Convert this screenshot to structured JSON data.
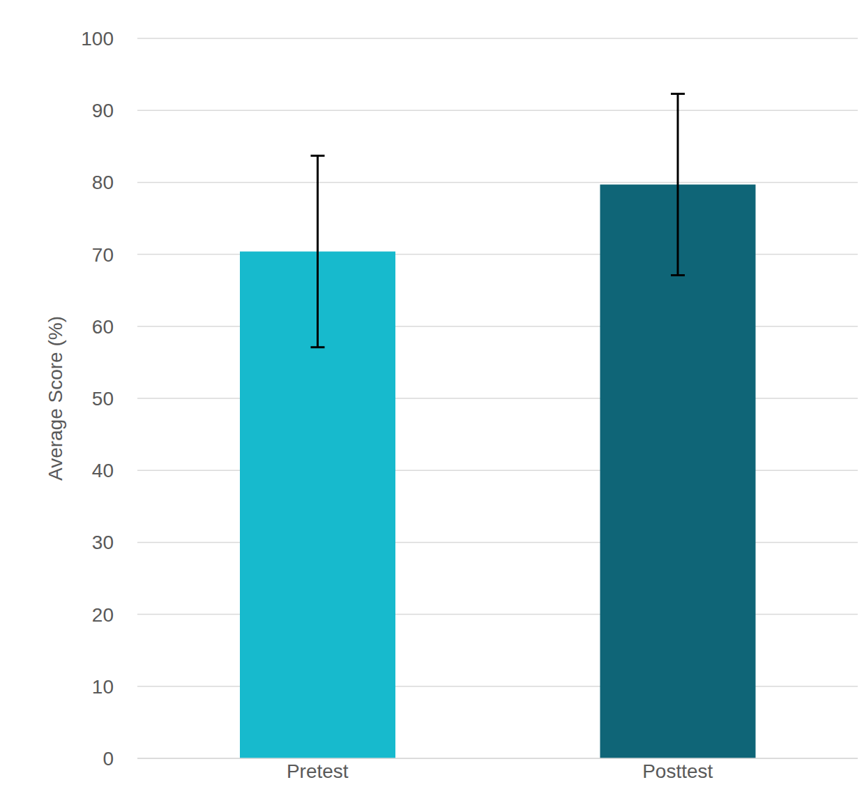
{
  "chart_data": {
    "type": "bar",
    "y_label": "Average Score (%)",
    "categories": [
      "Pretest",
      "Posttest"
    ],
    "values": [
      70.4,
      79.7
    ],
    "errors": [
      13.3,
      12.6
    ],
    "colors": [
      "#17bacd",
      "#0f6577"
    ],
    "ylim": [
      0,
      100
    ],
    "yticks": [
      0,
      10,
      20,
      30,
      40,
      50,
      60,
      70,
      80,
      90,
      100
    ],
    "grid": true
  }
}
